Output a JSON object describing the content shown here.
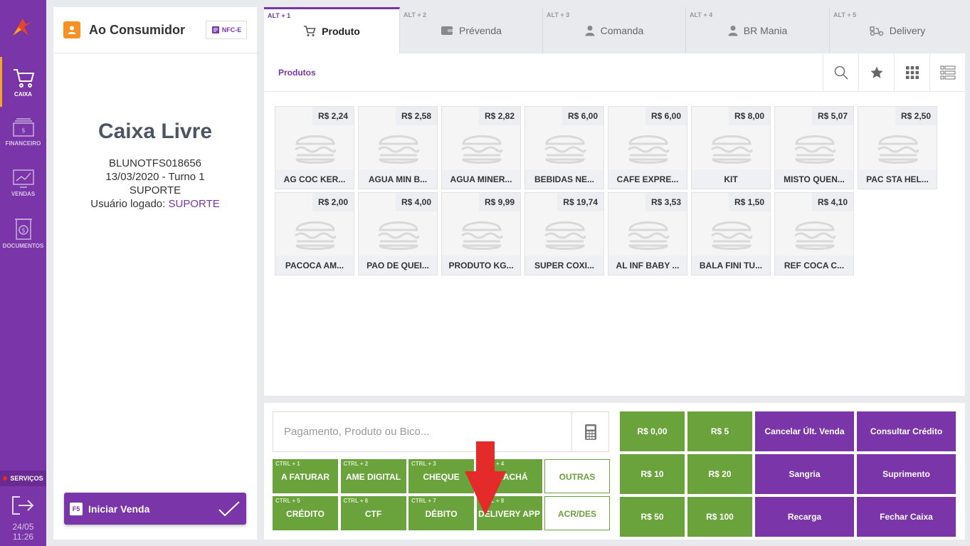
{
  "sidebar": {
    "items": [
      {
        "label": "CAIXA",
        "icon": "cart-icon"
      },
      {
        "label": "FINANCEIRO",
        "icon": "money-icon"
      },
      {
        "label": "VENDAS",
        "icon": "chart-icon"
      },
      {
        "label": "DOCUMENTOS",
        "icon": "document-icon"
      }
    ],
    "servicos": "SERVIÇOS",
    "date": "24/05",
    "time": "11:26"
  },
  "customer": {
    "title": "Ao Consumidor",
    "nfce": "NFC-E",
    "status": "Caixa Livre",
    "terminal": "BLUNOTFS018656",
    "date_turn": "13/03/2020 - Turno 1",
    "operator": "SUPORTE",
    "logged_label": "Usuário logado:",
    "logged_user": "SUPORTE",
    "start_shortcut": "F5",
    "start_label": "Iniciar Venda"
  },
  "tabs": [
    {
      "shortcut": "ALT + 1",
      "label": "Produto",
      "icon": "cart-icon"
    },
    {
      "shortcut": "ALT + 2",
      "label": "Prévenda",
      "icon": "wallet-icon"
    },
    {
      "shortcut": "ALT + 3",
      "label": "Comanda",
      "icon": "person-icon"
    },
    {
      "shortcut": "ALT + 4",
      "label": "BR Mania",
      "icon": "person-icon"
    },
    {
      "shortcut": "ALT + 5",
      "label": "Delivery",
      "icon": "scooter-icon"
    }
  ],
  "products_title": "Produtos",
  "products": [
    {
      "price": "R$ 2,24",
      "name": "AG COC KER..."
    },
    {
      "price": "R$ 2,58",
      "name": "AGUA MIN B..."
    },
    {
      "price": "R$ 2,82",
      "name": "AGUA MINER..."
    },
    {
      "price": "R$ 6,00",
      "name": "BEBIDAS NE..."
    },
    {
      "price": "R$ 6,00",
      "name": "CAFE EXPRE..."
    },
    {
      "price": "R$ 8,00",
      "name": "KIT"
    },
    {
      "price": "R$ 5,07",
      "name": "MISTO QUEN..."
    },
    {
      "price": "R$ 2,50",
      "name": "PAC STA HEL..."
    },
    {
      "price": "R$ 2,00",
      "name": "PACOCA AM..."
    },
    {
      "price": "R$ 4,00",
      "name": "PAO DE QUEI..."
    },
    {
      "price": "R$ 9,99",
      "name": "PRODUTO KG..."
    },
    {
      "price": "R$ 19,74",
      "name": "SUPER COXI..."
    },
    {
      "price": "R$ 3,53",
      "name": "AL INF BABY ..."
    },
    {
      "price": "R$ 1,50",
      "name": "BALA FINI TU..."
    },
    {
      "price": "R$ 4,10",
      "name": "REF COCA C..."
    }
  ],
  "search": {
    "placeholder": "Pagamento, Produto ou Bico..."
  },
  "payments": [
    {
      "shortcut": "CTRL + 1",
      "label": "A FATURAR"
    },
    {
      "shortcut": "CTRL + 2",
      "label": "AME DIGITAL"
    },
    {
      "shortcut": "CTRL + 3",
      "label": "CHEQUE"
    },
    {
      "shortcut": "CTRL + 4",
      "label": "CHACHÁ"
    },
    {
      "shortcut": "",
      "label": "OUTRAS"
    },
    {
      "shortcut": "CTRL + 5",
      "label": "CRÉDITO"
    },
    {
      "shortcut": "CTRL + 6",
      "label": "CTF"
    },
    {
      "shortcut": "CTRL + 7",
      "label": "DÉBITO"
    },
    {
      "shortcut": "CTRL + 8",
      "label": "DELIVERY APP"
    },
    {
      "shortcut": "",
      "label": "ACR/DES"
    }
  ],
  "quick": [
    {
      "label": "R$ 0,00"
    },
    {
      "label": "R$ 5"
    },
    {
      "label": "Cancelar Últ. Venda"
    },
    {
      "label": "Consultar Crédito"
    },
    {
      "label": "R$ 10"
    },
    {
      "label": "R$ 20"
    },
    {
      "label": "Sangria"
    },
    {
      "label": "Suprimento"
    },
    {
      "label": "R$ 50"
    },
    {
      "label": "R$ 100"
    },
    {
      "label": "Recarga"
    },
    {
      "label": "Fechar Caixa"
    }
  ],
  "colors": {
    "brand": "#7a35a8",
    "accent": "#f59222",
    "green": "#6aa23b",
    "annotation": "#e52a2a"
  }
}
